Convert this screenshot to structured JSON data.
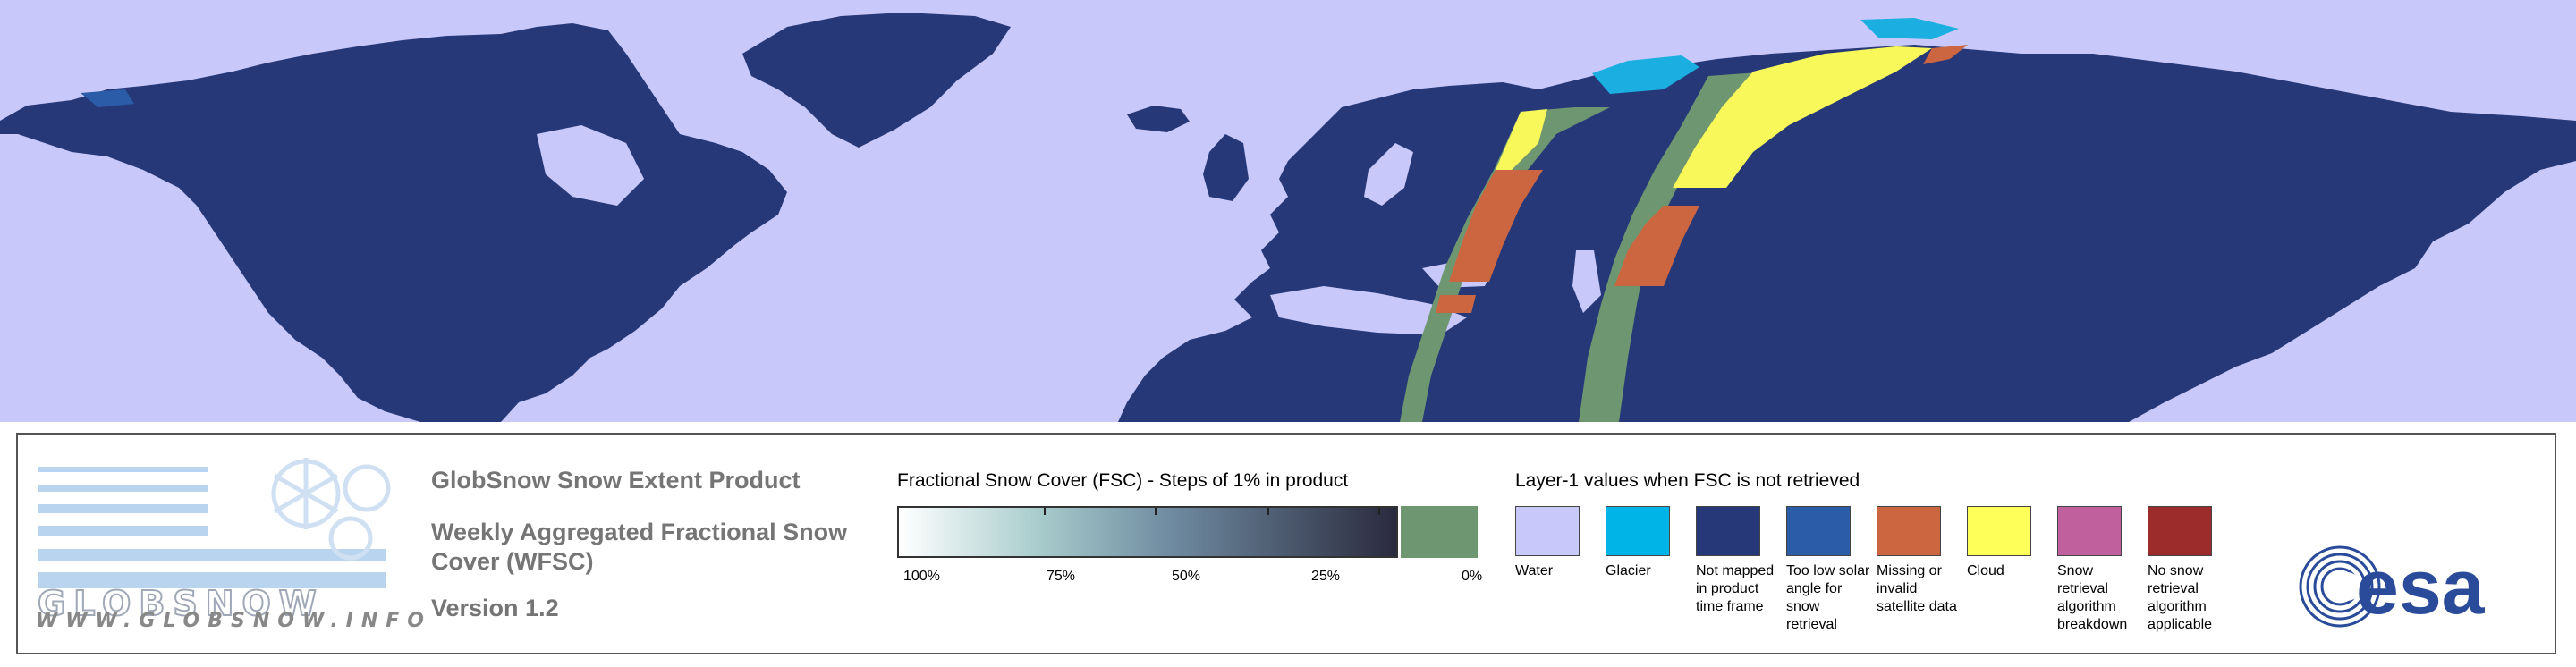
{
  "map": {
    "colors": {
      "water": "#c8c8fa",
      "not_mapped": "#263878",
      "glacier": "#1aafe0",
      "too_low_solar_angle": "#2a5ca8",
      "missing_invalid": "#cc6640",
      "cloud": "#f8f85a",
      "fsc_zero": "#6e9670"
    }
  },
  "product": {
    "name": "GlobSnow Snow Extent Product",
    "subtitle": "Weekly Aggregated Fractional Snow Cover (WFSC)",
    "version": "Version 1.2"
  },
  "logo": {
    "url": "WWW.GLOBSNOW.INFO",
    "wordmark": "GLOBSNOW"
  },
  "fsc_legend": {
    "title": "Fractional Snow Cover (FSC) - Steps of 1% in product",
    "labels": [
      "100%",
      "75%",
      "50%",
      "25%",
      "0%"
    ]
  },
  "layer1_legend": {
    "title": "Layer-1 values when FSC is not retrieved",
    "items": [
      {
        "label": "Water",
        "color": "#c8c8fa"
      },
      {
        "label": "Glacier",
        "color": "#00b4e8"
      },
      {
        "label": "Not mapped in product time frame",
        "color": "#263878"
      },
      {
        "label": "Too low solar angle for snow retrieval",
        "color": "#2a5ca8"
      },
      {
        "label": "Missing or invalid satellite data",
        "color": "#cc6640"
      },
      {
        "label": "Cloud",
        "color": "#ffff5a"
      },
      {
        "label": "Snow retrieval algorithm breakdown",
        "color": "#c0609c"
      },
      {
        "label": "No snow retrieval algorithm applicable",
        "color": "#9c2c2c"
      }
    ]
  },
  "agency": {
    "logo_text": "esa"
  }
}
